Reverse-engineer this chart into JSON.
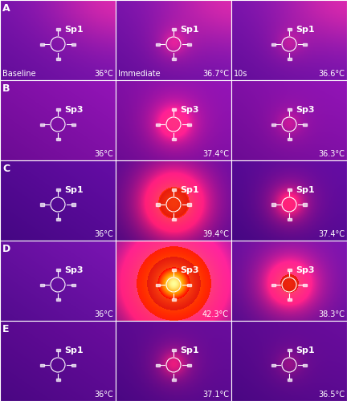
{
  "rows": [
    "A",
    "B",
    "C",
    "D",
    "E"
  ],
  "sp_labels": [
    [
      "Sp1",
      "Sp1",
      "Sp1"
    ],
    [
      "Sp3",
      "Sp3",
      "Sp3"
    ],
    [
      "Sp1",
      "Sp1",
      "Sp1"
    ],
    [
      "Sp3",
      "Sp3",
      "Sp3"
    ],
    [
      "Sp1",
      "Sp1",
      "Sp1"
    ]
  ],
  "temp_labels": [
    [
      "36°C",
      "36.7°C",
      "36.6°C"
    ],
    [
      "36°C",
      "37.4°C",
      "36.3°C"
    ],
    [
      "36°C",
      "39.4°C",
      "37.4°C"
    ],
    [
      "36°C",
      "42.3°C",
      "38.3°C"
    ],
    [
      "36°C",
      "37.1°C",
      "36.5°C"
    ]
  ],
  "col_labels": [
    "Baseline",
    "Immediate",
    "10s"
  ],
  "heat_intensity": [
    [
      0.0,
      0.08,
      0.05
    ],
    [
      0.0,
      0.22,
      0.06
    ],
    [
      0.0,
      0.55,
      0.18
    ],
    [
      0.0,
      1.0,
      0.38
    ],
    [
      0.0,
      0.12,
      0.05
    ]
  ],
  "bg_base_colors": [
    [
      [
        0.28,
        0.02,
        0.5
      ],
      [
        0.55,
        0.1,
        0.75
      ]
    ],
    [
      [
        0.25,
        0.02,
        0.48
      ],
      [
        0.52,
        0.08,
        0.72
      ]
    ],
    [
      [
        0.18,
        0.01,
        0.42
      ],
      [
        0.4,
        0.05,
        0.65
      ]
    ],
    [
      [
        0.22,
        0.02,
        0.46
      ],
      [
        0.48,
        0.08,
        0.7
      ]
    ],
    [
      [
        0.2,
        0.01,
        0.44
      ],
      [
        0.42,
        0.05,
        0.62
      ]
    ]
  ],
  "row_label_fontsize": 9,
  "temp_fontsize": 7,
  "sp_fontsize": 8,
  "col_label_fontsize": 7
}
